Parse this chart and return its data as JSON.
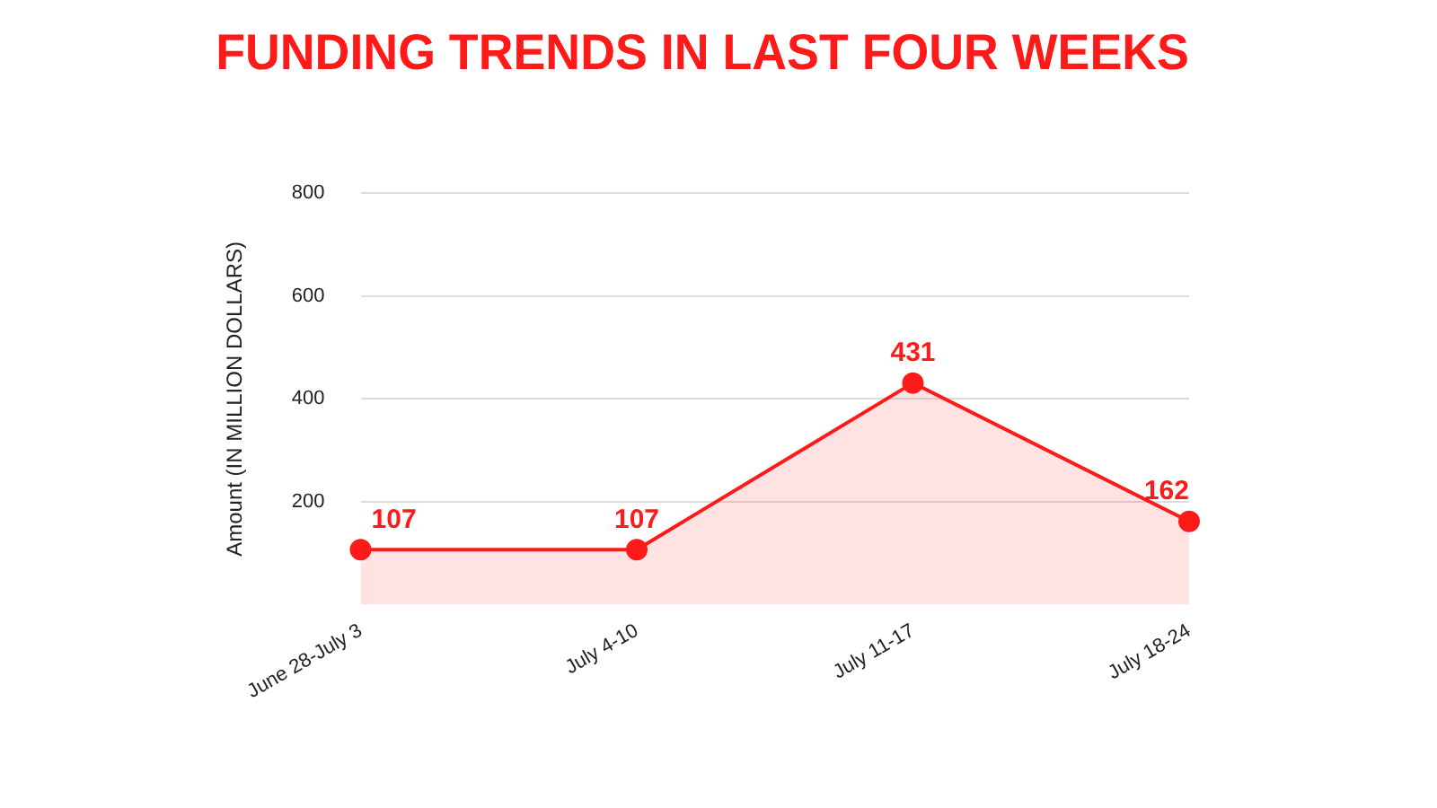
{
  "chart_data": {
    "type": "area",
    "title": "FUNDING TRENDS IN LAST FOUR WEEKS",
    "ylabel": "Amount (IN MILLION DOLLARS)",
    "categories": [
      "June 28-July 3",
      "July 4-10",
      "July 11-17",
      "July 18-24"
    ],
    "series": [
      {
        "color": "#ff1a1a",
        "values": [
          107,
          107,
          431,
          162
        ]
      }
    ],
    "ylim": [
      0,
      800
    ],
    "yticks": [
      200,
      400,
      600,
      800
    ],
    "grid": "y",
    "data_labels": true,
    "marker": "circle",
    "line_style": "solid",
    "legend": false
  }
}
